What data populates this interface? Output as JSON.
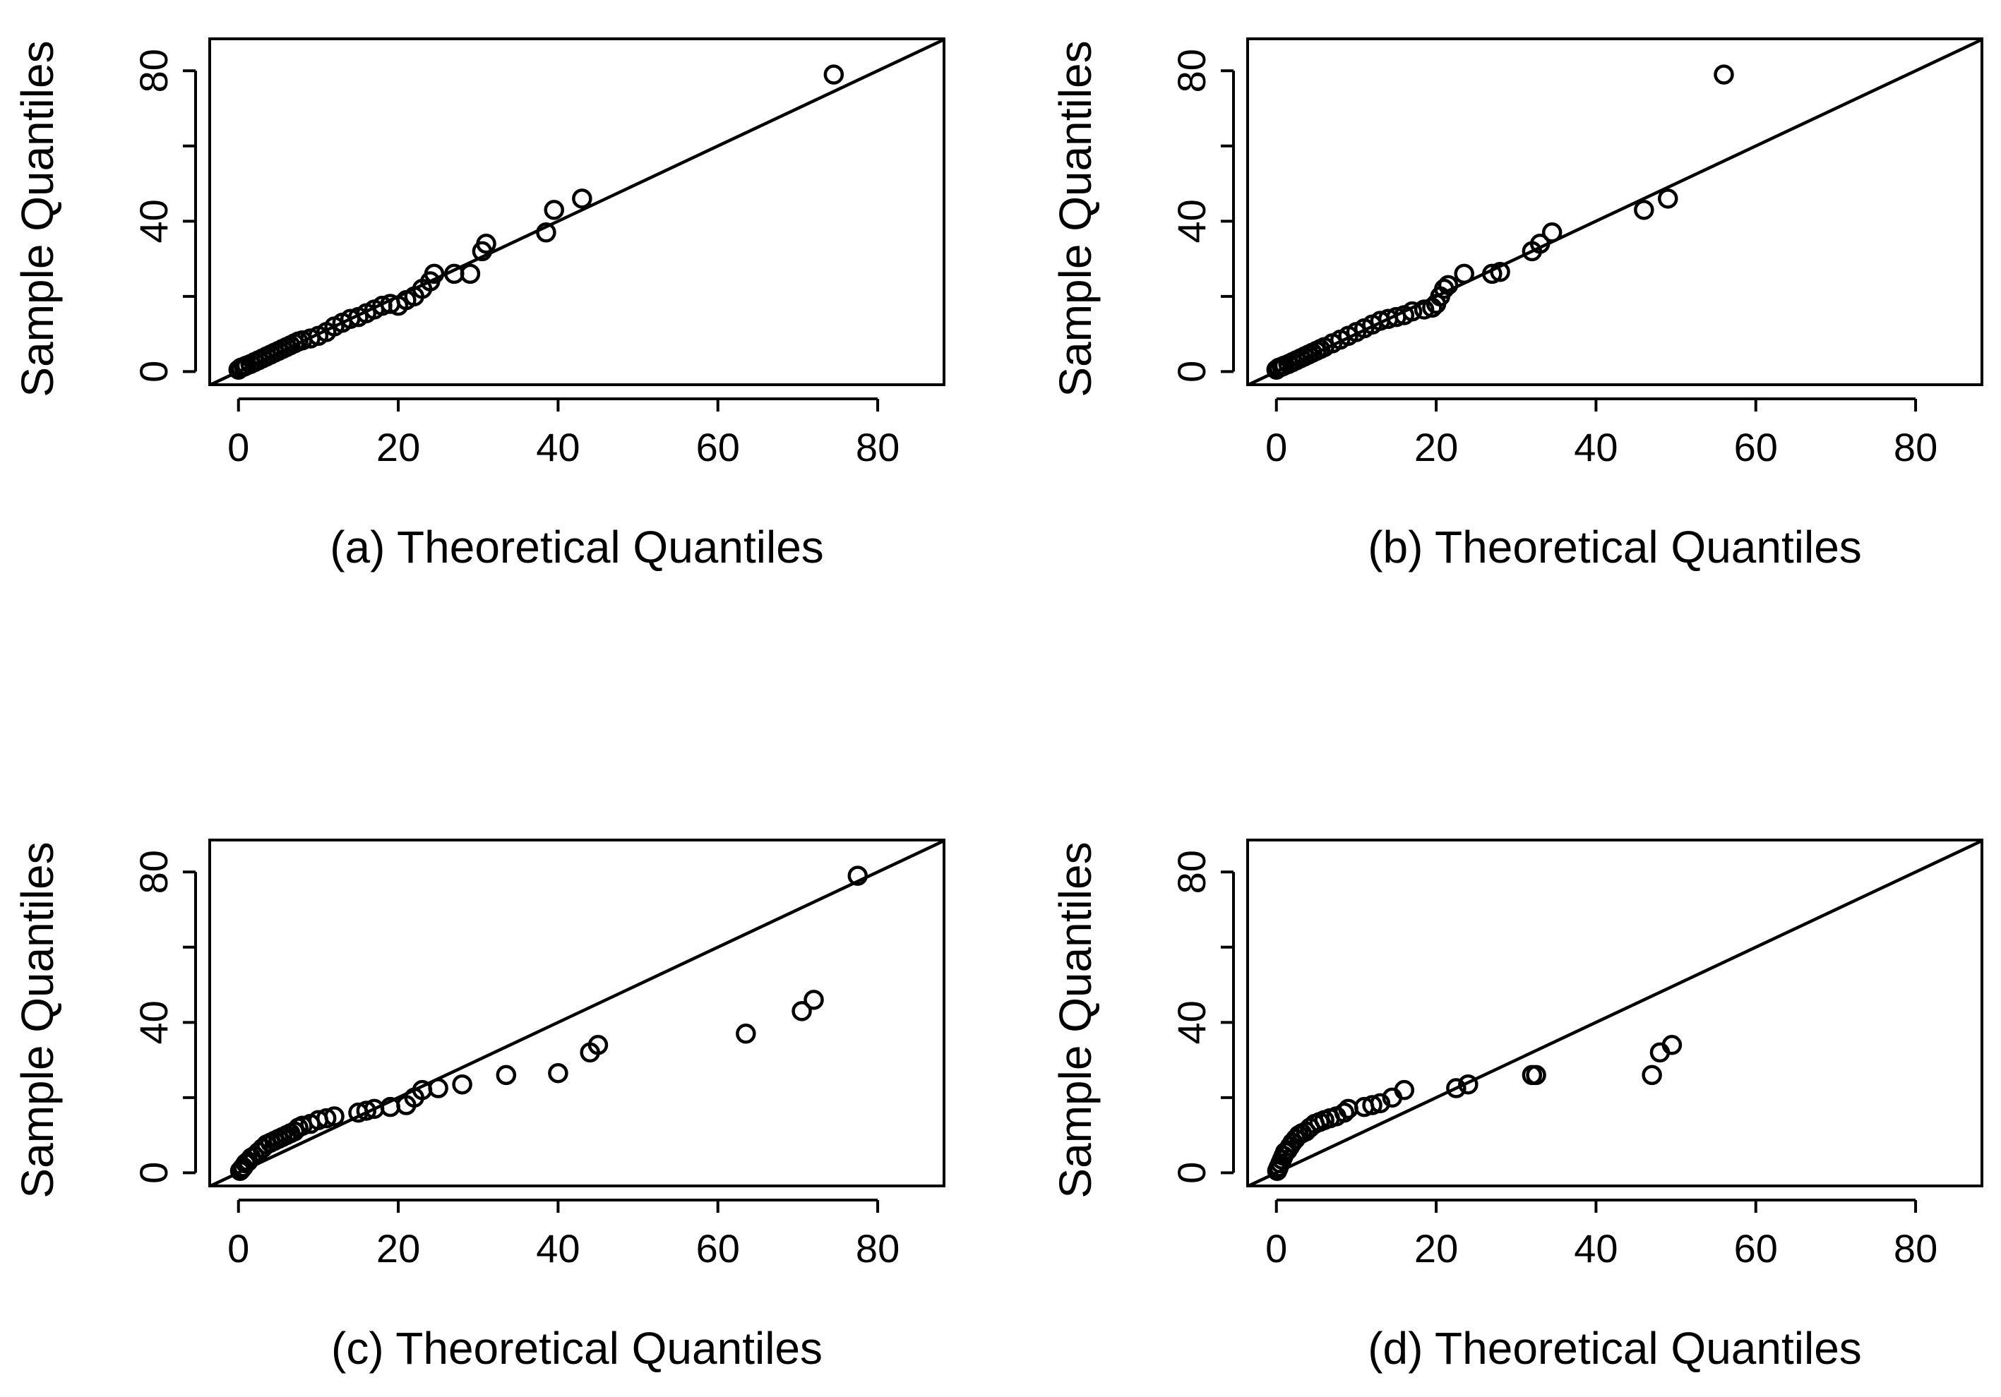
{
  "figure_title": "",
  "chart_data": [
    {
      "panel": "a",
      "type": "scatter",
      "title": "",
      "xlabel": "(a) Theoretical Quantiles",
      "ylabel": "Sample Quantiles",
      "xlim": [
        0,
        88
      ],
      "ylim": [
        0,
        88
      ],
      "xticks": [
        0,
        20,
        40,
        60,
        80
      ],
      "yticks": [
        0,
        20,
        40,
        60,
        80
      ],
      "xtick_labels": [
        "0",
        "20",
        "40",
        "60",
        "80"
      ],
      "ytick_labels": [
        "0",
        "",
        "40",
        "",
        "80"
      ],
      "reference_line": {
        "intercept": 0,
        "slope": 1
      },
      "x": [
        0,
        0.3,
        0.7,
        1.0,
        1.5,
        2.0,
        2.5,
        3.0,
        3.5,
        4.0,
        4.5,
        5.0,
        5.5,
        6.0,
        6.5,
        7.0,
        7.5,
        8.0,
        9.0,
        10.0,
        11.0,
        12.0,
        13.0,
        14.0,
        15.0,
        16.0,
        17.0,
        18.0,
        19.0,
        20.0,
        21.0,
        22.0,
        23.0,
        24.0,
        24.5,
        27.0,
        29.0,
        30.5,
        31.0,
        38.5,
        39.5,
        43.0,
        74.5
      ],
      "y": [
        0.5,
        1.0,
        1.3,
        1.6,
        2.0,
        2.5,
        3.0,
        3.5,
        4.0,
        4.5,
        5.0,
        5.5,
        6.0,
        6.5,
        7.0,
        7.5,
        8.0,
        8.3,
        8.8,
        9.5,
        10.5,
        12.0,
        13.0,
        14.0,
        14.5,
        15.5,
        16.5,
        17.5,
        18.0,
        17.5,
        19.0,
        20.0,
        22.0,
        24.0,
        26.0,
        26.0,
        26.0,
        32.0,
        34.0,
        37.0,
        43.0,
        46.0,
        79.0
      ]
    },
    {
      "panel": "b",
      "type": "scatter",
      "title": "",
      "xlabel": "(b) Theoretical Quantiles",
      "ylabel": "Sample Quantiles",
      "xlim": [
        0,
        88
      ],
      "ylim": [
        0,
        88
      ],
      "xticks": [
        0,
        20,
        40,
        60,
        80
      ],
      "yticks": [
        0,
        20,
        40,
        60,
        80
      ],
      "xtick_labels": [
        "0",
        "20",
        "40",
        "60",
        "80"
      ],
      "ytick_labels": [
        "0",
        "",
        "40",
        "",
        "80"
      ],
      "reference_line": {
        "intercept": 0,
        "slope": 1
      },
      "x": [
        0,
        0.3,
        0.7,
        1.0,
        1.5,
        2.0,
        2.5,
        3.0,
        3.5,
        4.0,
        4.5,
        5.0,
        5.5,
        6.0,
        7.0,
        8.0,
        9.0,
        10.0,
        11.0,
        12.0,
        13.0,
        14.0,
        15.0,
        16.0,
        17.0,
        18.5,
        19.5,
        20.0,
        20.5,
        21.0,
        21.5,
        23.5,
        27.0,
        28.0,
        32.0,
        33.0,
        34.5,
        46.0,
        49.0,
        56.0
      ],
      "y": [
        0.5,
        1.0,
        1.3,
        1.6,
        2.0,
        2.5,
        3.0,
        3.5,
        4.0,
        4.5,
        5.0,
        5.5,
        6.0,
        6.5,
        7.5,
        8.5,
        9.5,
        10.5,
        11.5,
        12.5,
        13.5,
        14.0,
        14.5,
        15.0,
        16.0,
        16.5,
        17.0,
        18.0,
        20.0,
        22.0,
        23.0,
        26.0,
        26.0,
        26.5,
        32.0,
        34.0,
        37.0,
        43.0,
        46.0,
        79.0
      ]
    },
    {
      "panel": "c",
      "type": "scatter",
      "title": "",
      "xlabel": "(c) Theoretical Quantiles",
      "ylabel": "Sample Quantiles",
      "xlim": [
        0,
        88
      ],
      "ylim": [
        0,
        88
      ],
      "xticks": [
        0,
        20,
        40,
        60,
        80
      ],
      "yticks": [
        0,
        20,
        40,
        60,
        80
      ],
      "xtick_labels": [
        "0",
        "20",
        "40",
        "60",
        "80"
      ],
      "ytick_labels": [
        "0",
        "",
        "40",
        "",
        "80"
      ],
      "reference_line": {
        "intercept": 0,
        "slope": 1
      },
      "x": [
        0.2,
        0.4,
        0.6,
        0.9,
        1.2,
        1.6,
        2.0,
        2.5,
        3.0,
        3.5,
        4.0,
        4.5,
        5.0,
        5.5,
        6.0,
        6.5,
        7.0,
        7.5,
        8.0,
        9.0,
        10.0,
        11.0,
        12.0,
        15.0,
        16.0,
        17.0,
        19.0,
        21.0,
        22.0,
        23.0,
        25.0,
        28.0,
        33.5,
        40.0,
        44.0,
        45.0,
        63.5,
        70.5,
        72.0,
        77.5
      ],
      "y": [
        0.5,
        1.0,
        1.5,
        2.5,
        3.0,
        4.0,
        4.5,
        5.5,
        6.5,
        7.5,
        8.0,
        8.5,
        9.0,
        9.5,
        10.0,
        10.5,
        11.0,
        12.0,
        12.5,
        13.0,
        14.0,
        14.5,
        15.0,
        16.0,
        16.5,
        17.0,
        17.5,
        18.0,
        20.0,
        22.0,
        22.5,
        23.5,
        26.0,
        26.5,
        32.0,
        34.0,
        37.0,
        43.0,
        46.0,
        79.0
      ]
    },
    {
      "panel": "d",
      "type": "scatter",
      "title": "",
      "xlabel": "(d) Theoretical Quantiles",
      "ylabel": "Sample Quantiles",
      "xlim": [
        0,
        88
      ],
      "ylim": [
        0,
        88
      ],
      "xticks": [
        0,
        20,
        40,
        60,
        80
      ],
      "yticks": [
        0,
        20,
        40,
        60,
        80
      ],
      "xtick_labels": [
        "0",
        "20",
        "40",
        "60",
        "80"
      ],
      "ytick_labels": [
        "0",
        "",
        "40",
        "",
        "80"
      ],
      "reference_line": {
        "intercept": 0,
        "slope": 1
      },
      "x": [
        0.1,
        0.2,
        0.3,
        0.5,
        0.7,
        0.9,
        1.1,
        1.4,
        1.7,
        2.0,
        2.4,
        2.8,
        3.2,
        3.7,
        4.2,
        4.8,
        5.4,
        6.0,
        6.7,
        7.5,
        8.5,
        9.0,
        11.0,
        12.0,
        13.0,
        14.5,
        16.0,
        22.5,
        24.0,
        32.0,
        32.5,
        47.0,
        48.0,
        49.5
      ],
      "y": [
        0.5,
        1.0,
        1.5,
        2.5,
        3.5,
        4.5,
        5.5,
        6.0,
        7.0,
        8.0,
        9.0,
        10.0,
        10.5,
        11.0,
        12.0,
        13.0,
        13.5,
        14.0,
        14.5,
        15.0,
        16.0,
        17.0,
        17.5,
        18.0,
        18.5,
        20.0,
        22.0,
        22.5,
        23.5,
        26.0,
        26.0,
        26.0,
        32.0,
        34.0
      ]
    }
  ]
}
